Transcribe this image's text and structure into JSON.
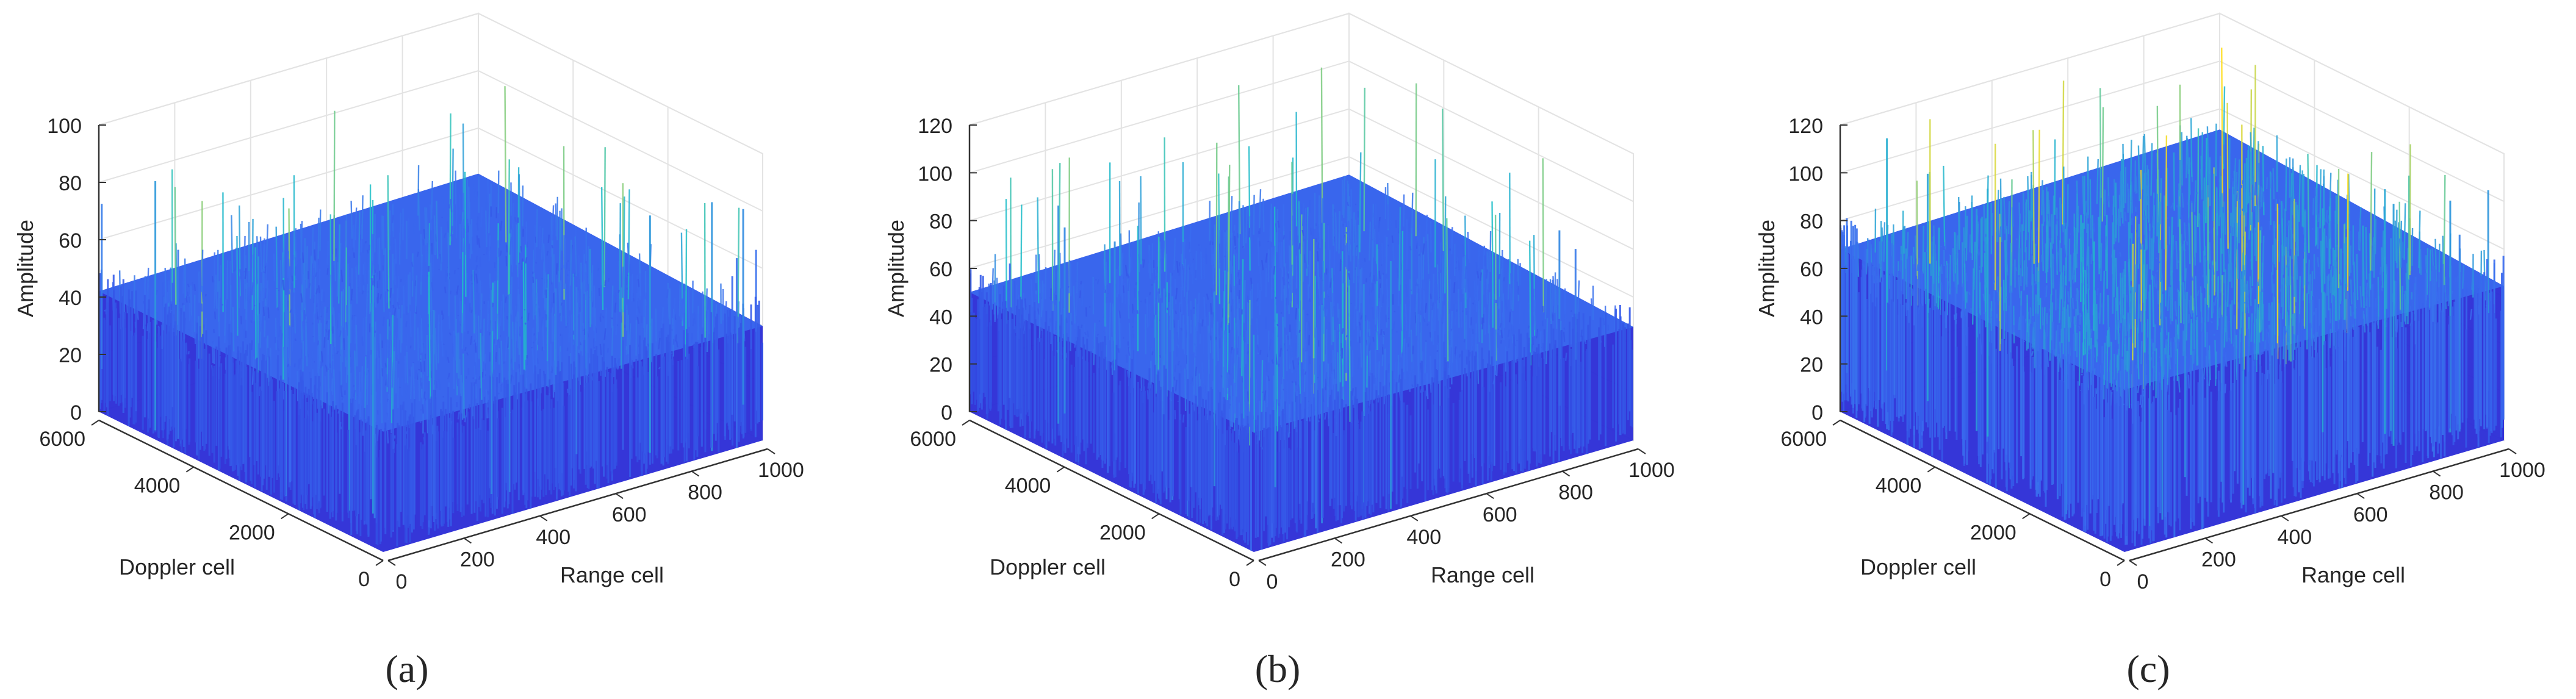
{
  "figure": {
    "captions": [
      "(a)",
      "(b)",
      "(c)"
    ]
  },
  "colors": {
    "surface_low": "#2a2bd6",
    "surface_mid": "#3a6cf0",
    "surface_high": "#20c0c8",
    "surface_peak": "#e0d830",
    "grid": "#e3e3e3",
    "axis": "#333333",
    "text": "#262626"
  },
  "chart_data": [
    {
      "type": "surface3d",
      "panel": "(a)",
      "xlabel": "Range cell",
      "ylabel": "Doppler cell",
      "zlabel": "Amplitude",
      "xlim": [
        0,
        1000
      ],
      "ylim": [
        0,
        6000
      ],
      "zlim": [
        0,
        100
      ],
      "xticks": [
        0,
        200,
        400,
        600,
        800,
        1000
      ],
      "yticks": [
        0,
        2000,
        4000,
        6000
      ],
      "zticks": [
        0,
        20,
        40,
        60,
        80,
        100
      ],
      "surface": {
        "base": 42,
        "spike_max": 92,
        "floor": 0
      }
    },
    {
      "type": "surface3d",
      "panel": "(b)",
      "xlabel": "Range cell",
      "ylabel": "Doppler cell",
      "zlabel": "Amplitude",
      "xlim": [
        0,
        1000
      ],
      "ylim": [
        0,
        6000
      ],
      "zlim": [
        0,
        120
      ],
      "xticks": [
        0,
        200,
        400,
        600,
        800,
        1000
      ],
      "yticks": [
        0,
        2000,
        4000,
        6000
      ],
      "zticks": [
        0,
        20,
        40,
        60,
        80,
        100,
        120
      ],
      "surface": {
        "base": 50,
        "spike_max": 108,
        "floor": 0
      }
    },
    {
      "type": "surface3d",
      "panel": "(c)",
      "xlabel": "Range cell",
      "ylabel": "Doppler cell",
      "zlabel": "Amplitude",
      "xlim": [
        0,
        1000
      ],
      "ylim": [
        0,
        6000
      ],
      "zlim": [
        0,
        120
      ],
      "xticks": [
        0,
        200,
        400,
        600,
        800,
        1000
      ],
      "yticks": [
        0,
        2000,
        4000,
        6000
      ],
      "zticks": [
        0,
        20,
        40,
        60,
        80,
        100,
        120
      ],
      "surface": {
        "base": 68,
        "spike_max": 125,
        "floor": 0
      }
    }
  ]
}
